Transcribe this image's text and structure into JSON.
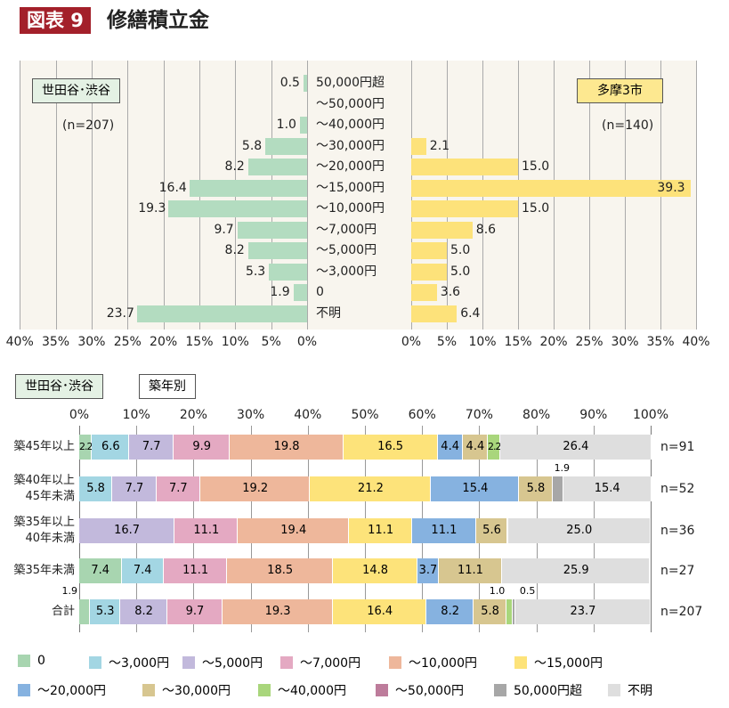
{
  "header": {
    "badge": "図表 9",
    "title": "修繕積立金"
  },
  "chart_data": [
    {
      "type": "bar",
      "orientation": "horizontal-butterfly",
      "categories": [
        "50,000円超",
        "～50,000円",
        "～40,000円",
        "～30,000円",
        "～20,000円",
        "～15,000円",
        "～10,000円",
        "～7,000円",
        "～5,000円",
        "～3,000円",
        "0",
        "不明"
      ],
      "left": {
        "name": "世田谷･渋谷",
        "n": "(n=207)",
        "values": [
          0.5,
          null,
          1.0,
          5.8,
          8.2,
          16.4,
          19.3,
          9.7,
          8.2,
          5.3,
          1.9,
          23.7
        ],
        "labels": [
          "0.5",
          "",
          "1.0",
          "5.8",
          "8.2",
          "16.4",
          "19.3",
          "9.7",
          "8.2",
          "5.3",
          "1.9",
          "23.7"
        ],
        "color": "#b3dcc0",
        "xlim": [
          0,
          40
        ],
        "ticks": [
          "40%",
          "35%",
          "30%",
          "25%",
          "20%",
          "15%",
          "10%",
          "5%",
          "0%"
        ]
      },
      "right": {
        "name": "多摩3市",
        "n": "(n=140)",
        "values": [
          null,
          null,
          null,
          2.1,
          15.0,
          39.3,
          15.0,
          8.6,
          5.0,
          5.0,
          3.6,
          6.4
        ],
        "labels": [
          "",
          "",
          "",
          "2.1",
          "15.0",
          "39.3",
          "15.0",
          "8.6",
          "5.0",
          "5.0",
          "3.6",
          "6.4"
        ],
        "color": "#fde27a",
        "xlim": [
          0,
          40
        ],
        "ticks": [
          "0%",
          "5%",
          "10%",
          "15%",
          "20%",
          "25%",
          "30%",
          "35%",
          "40%"
        ]
      }
    },
    {
      "type": "bar",
      "orientation": "horizontal-stacked-100",
      "tags": [
        "世田谷･渋谷",
        "築年別"
      ],
      "ticks": [
        "0%",
        "10%",
        "20%",
        "30%",
        "40%",
        "50%",
        "60%",
        "70%",
        "80%",
        "90%",
        "100%"
      ],
      "series": [
        {
          "name": "0",
          "color": "#a8d5b0"
        },
        {
          "name": "～3,000円",
          "color": "#a3d6e3"
        },
        {
          "name": "～5,000円",
          "color": "#c2b9dc"
        },
        {
          "name": "～7,000円",
          "color": "#e4a9c2"
        },
        {
          "name": "～10,000円",
          "color": "#eeb79b"
        },
        {
          "name": "～15,000円",
          "color": "#fde37a"
        },
        {
          "name": "～20,000円",
          "color": "#86b2e0"
        },
        {
          "name": "～30,000円",
          "color": "#d7c690"
        },
        {
          "name": "～40,000円",
          "color": "#a9d67c"
        },
        {
          "name": "～50,000円",
          "color": "#bd7c9b"
        },
        {
          "name": "50,000円超",
          "color": "#a7a7a7"
        },
        {
          "name": "不明",
          "color": "#dedede"
        }
      ],
      "rows": [
        {
          "label": [
            "築45年以上"
          ],
          "n": "n=91",
          "values": [
            2.2,
            6.6,
            7.7,
            9.9,
            19.8,
            16.5,
            4.4,
            4.4,
            2.2,
            0,
            0,
            26.4
          ],
          "labels": [
            "2.2",
            "6.6",
            "7.7",
            "9.9",
            "19.8",
            "16.5",
            "4.4",
            "4.4",
            "2.2",
            "",
            "",
            "26.4"
          ]
        },
        {
          "label": [
            "築40年以上",
            "45年未満"
          ],
          "n": "n=52",
          "values": [
            0,
            5.8,
            7.7,
            7.7,
            19.2,
            21.2,
            15.4,
            5.8,
            0,
            0,
            1.9,
            15.4
          ],
          "labels": [
            "",
            "5.8",
            "7.7",
            "7.7",
            "19.2",
            "21.2",
            "15.4",
            "5.8",
            "",
            "",
            "1.9",
            "15.4"
          ]
        },
        {
          "label": [
            "築35年以上",
            "40年未満"
          ],
          "n": "n=36",
          "values": [
            0,
            0,
            16.7,
            11.1,
            19.4,
            11.1,
            11.1,
            5.6,
            0,
            0,
            0,
            25.0
          ],
          "labels": [
            "",
            "",
            "16.7",
            "11.1",
            "19.4",
            "11.1",
            "11.1",
            "5.6",
            "",
            "",
            "",
            "25.0"
          ]
        },
        {
          "label": [
            "築35年未満"
          ],
          "n": "n=27",
          "values": [
            7.4,
            7.4,
            0,
            11.1,
            18.5,
            14.8,
            3.7,
            11.1,
            0,
            0,
            0,
            25.9
          ],
          "labels": [
            "7.4",
            "7.4",
            "",
            "11.1",
            "18.5",
            "14.8",
            "3.7",
            "11.1",
            "",
            "",
            "",
            "25.9"
          ]
        },
        {
          "label": [
            "合計"
          ],
          "n": "n=207",
          "values": [
            1.9,
            5.3,
            8.2,
            9.7,
            19.3,
            16.4,
            8.2,
            5.8,
            1.0,
            0,
            0.5,
            23.7
          ],
          "labels": [
            "1.9",
            "5.3",
            "8.2",
            "9.7",
            "19.3",
            "16.4",
            "8.2",
            "5.8",
            "1.0",
            "",
            "0.5",
            "23.7"
          ]
        }
      ]
    }
  ]
}
